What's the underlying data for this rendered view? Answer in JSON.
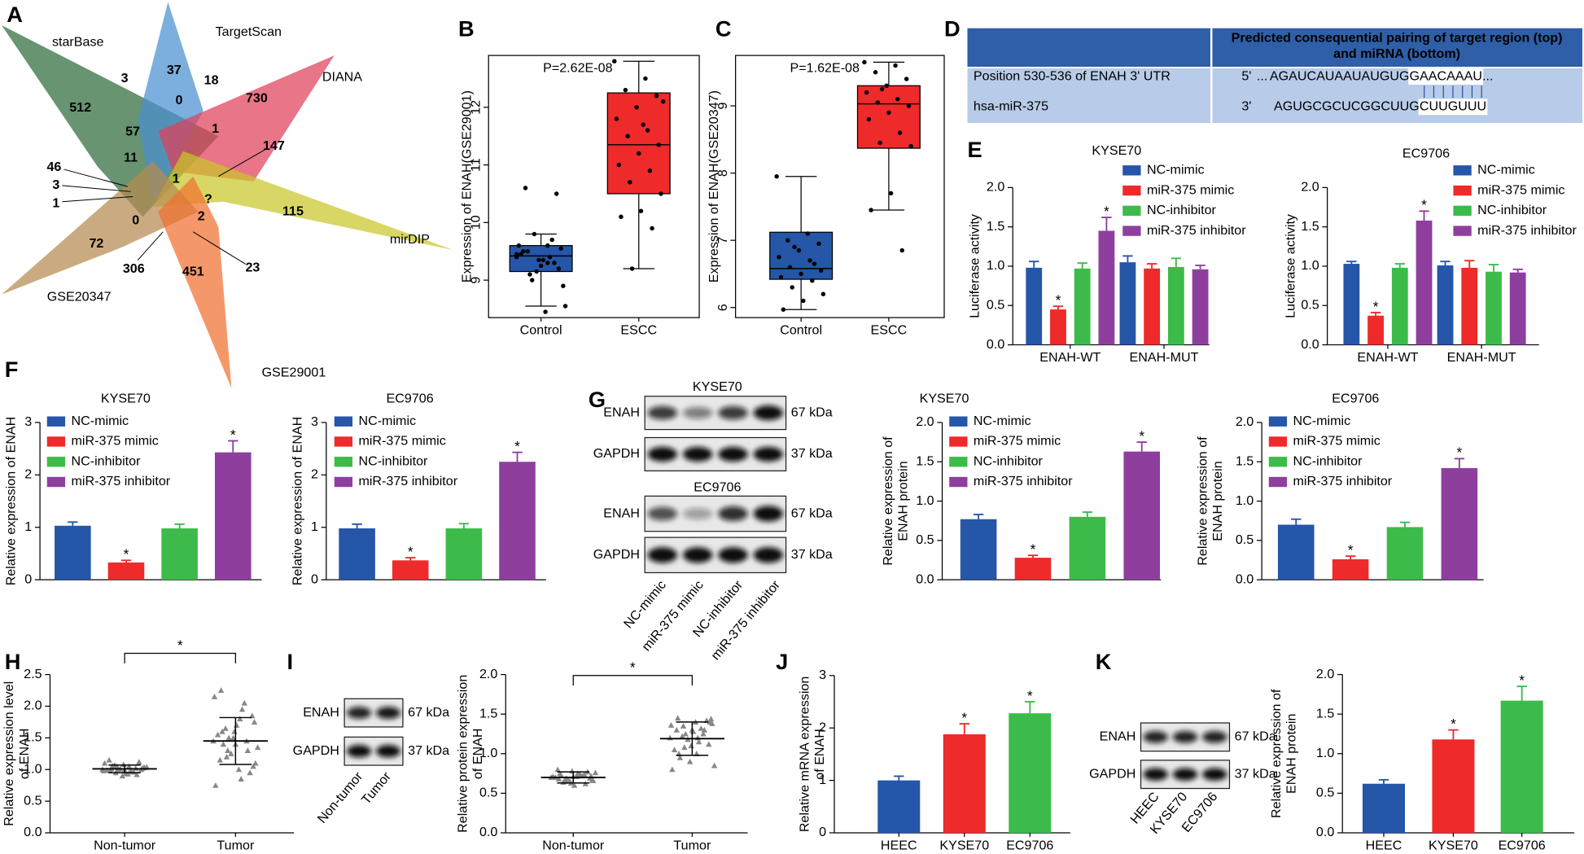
{
  "panel_labels": [
    "A",
    "B",
    "C",
    "D",
    "E",
    "F",
    "G",
    "H",
    "I",
    "J",
    "K"
  ],
  "venn": {
    "sets": [
      {
        "name": "starBase",
        "color": "#2e6b3a"
      },
      {
        "name": "TargetScan",
        "color": "#4a90d0"
      },
      {
        "name": "DIANA",
        "color": "#e0405a"
      },
      {
        "name": "mirDIP",
        "color": "#c9c62a"
      },
      {
        "name": "GSE20347",
        "color": "#b58a50"
      },
      {
        "name": "GSE29001",
        "color": "#f07030"
      }
    ],
    "regions": [
      3,
      37,
      18,
      0,
      730,
      512,
      57,
      1,
      147,
      11,
      1,
      "?",
      46,
      3,
      1,
      115,
      0,
      2,
      72,
      306,
      451,
      23
    ]
  },
  "sequence_table": {
    "header": [
      "Predicted consequential pairing of target region (top)",
      "and miRNA (bottom)"
    ],
    "rows": [
      {
        "label": "Position 530-536 of ENAH 3' UTR",
        "end": "5'",
        "seq": [
          "...",
          "AGAUCAUAAUAUGUG",
          "GAACAAAU",
          "..."
        ]
      },
      {
        "label": "hsa-miR-375",
        "end": "3'",
        "seq": [
          "AGUGCGCUCGGCUUG",
          "CUUGUUU"
        ]
      }
    ]
  },
  "blots": [
    {
      "title": "KYSE70",
      "rows": [
        {
          "name": "ENAH",
          "size": "67 kDa"
        },
        {
          "name": "GAPDH",
          "size": "37 kDa"
        }
      ]
    },
    {
      "title": "EC9706",
      "rows": [
        {
          "name": "ENAH",
          "size": "67 kDa"
        },
        {
          "name": "GAPDH",
          "size": "37 kDa"
        }
      ],
      "lanes": [
        "NC-mimic",
        "miR-375 mimic",
        "NC-inhibitor",
        "miR-375 inhibitor"
      ]
    },
    {
      "rows": [
        {
          "name": "ENAH",
          "size": "67 kDa"
        },
        {
          "name": "GAPDH",
          "size": "37 kDa"
        }
      ],
      "lanes": [
        "Non-tumor",
        "Tumor"
      ]
    },
    {
      "rows": [
        {
          "name": "ENAH",
          "size": "67 kDa"
        },
        {
          "name": "GAPDH",
          "size": "37 kDa"
        }
      ],
      "lanes": [
        "HEEC",
        "KYSE70",
        "EC9706"
      ]
    }
  ],
  "chart_data": [
    {
      "type": "box",
      "annotation": "P=2.62E-08",
      "ylabel": "Expression of ENAH(GSE29001)",
      "categories": [
        "Control",
        "ESCC"
      ],
      "colors": [
        "#2556a8",
        "#ee2a2a"
      ],
      "ylim": [
        8.35,
        12.9
      ],
      "yticks": [
        9,
        10,
        11,
        12
      ],
      "boxes": [
        {
          "whislo": 8.55,
          "q1": 9.15,
          "med": 9.42,
          "q3": 9.6,
          "whishi": 9.8,
          "points": [
            9.45,
            9.3,
            9.5,
            9.2,
            9.35,
            9.6,
            9.4,
            9.1,
            9.55,
            9.25,
            9.45,
            9.7,
            9.0,
            8.9,
            9.35,
            9.5,
            9.3,
            9.8,
            8.55,
            8.45,
            10.6,
            10.5,
            9.15,
            9.4,
            9.6
          ]
        },
        {
          "whislo": 9.2,
          "q1": 10.5,
          "med": 11.35,
          "q3": 12.25,
          "whishi": 12.8,
          "points": [
            12.8,
            12.5,
            12.3,
            12.2,
            12.0,
            11.8,
            11.6,
            11.5,
            11.35,
            11.2,
            11.0,
            10.9,
            10.7,
            10.5,
            10.2,
            10.1,
            9.9,
            9.2,
            12.1,
            11.7
          ]
        }
      ]
    },
    {
      "type": "box",
      "annotation": "P=1.62E-08",
      "ylabel": "Expression of ENAH(GSE20347)",
      "categories": [
        "Control",
        "ESCC"
      ],
      "colors": [
        "#2556a8",
        "#ee2a2a"
      ],
      "ylim": [
        5.85,
        9.75
      ],
      "yticks": [
        6,
        7,
        8,
        9
      ],
      "boxes": [
        {
          "whislo": 5.97,
          "q1": 6.42,
          "med": 6.58,
          "q3": 7.12,
          "whishi": 7.95,
          "points": [
            7.95,
            7.1,
            7.0,
            6.95,
            6.85,
            6.75,
            6.7,
            6.6,
            6.55,
            6.5,
            6.45,
            6.4,
            6.3,
            6.2,
            6.1,
            5.97,
            6.65,
            6.9
          ]
        },
        {
          "whislo": 7.45,
          "q1": 8.37,
          "med": 9.03,
          "q3": 9.3,
          "whishi": 9.65,
          "points": [
            9.65,
            9.6,
            9.5,
            9.4,
            9.3,
            9.2,
            9.1,
            9.05,
            9.0,
            8.9,
            8.8,
            8.6,
            8.45,
            8.4,
            7.7,
            7.45,
            6.85,
            9.25
          ]
        }
      ]
    },
    {
      "type": "bar",
      "title": "KYSE70",
      "ylabel": "Luciferase activity",
      "categories": [
        "ENAH-WT",
        "ENAH-MUT"
      ],
      "legend": "upper left",
      "ylim": [
        0,
        2
      ],
      "yticks": [
        {
          "value": 0,
          "label": "0.0"
        },
        0.5,
        {
          "value": 1,
          "label": "1.0"
        },
        1.5,
        {
          "value": 2,
          "label": "2.0"
        }
      ],
      "series": [
        {
          "name": "NC-mimic",
          "color": "#2556a8",
          "values": [
            0.98,
            1.05
          ],
          "errors": [
            0.08,
            0.08
          ],
          "sig": [
            null,
            null
          ]
        },
        {
          "name": "miR-375 mimic",
          "color": "#ee2a2a",
          "values": [
            0.45,
            0.97
          ],
          "errors": [
            0.04,
            0.06
          ],
          "sig": [
            "*",
            null
          ]
        },
        {
          "name": "NC-inhibitor",
          "color": "#3dbb4a",
          "values": [
            0.97,
            0.99
          ],
          "errors": [
            0.07,
            0.11
          ],
          "sig": [
            null,
            null
          ]
        },
        {
          "name": "miR-375 inhibitor",
          "color": "#8e3f9e",
          "values": [
            1.45,
            0.96
          ],
          "errors": [
            0.17,
            0.05
          ],
          "sig": [
            "*",
            null
          ]
        }
      ]
    },
    {
      "type": "bar",
      "title": "EC9706",
      "ylabel": "Luciferase activity",
      "categories": [
        "ENAH-WT",
        "ENAH-MUT"
      ],
      "legend": "upper left",
      "ylim": [
        0,
        2
      ],
      "yticks": [
        {
          "value": 0,
          "label": "0.0"
        },
        0.5,
        {
          "value": 1,
          "label": "1.0"
        },
        1.5,
        {
          "value": 2,
          "label": "2.0"
        }
      ],
      "series": [
        {
          "name": "NC-mimic",
          "color": "#2556a8",
          "values": [
            1.03,
            1.01
          ],
          "errors": [
            0.03,
            0.05
          ],
          "sig": [
            null,
            null
          ]
        },
        {
          "name": "miR-375 mimic",
          "color": "#ee2a2a",
          "values": [
            0.37,
            0.98
          ],
          "errors": [
            0.04,
            0.09
          ],
          "sig": [
            "*",
            null
          ]
        },
        {
          "name": "NC-inhibitor",
          "color": "#3dbb4a",
          "values": [
            0.98,
            0.93
          ],
          "errors": [
            0.05,
            0.09
          ],
          "sig": [
            null,
            null
          ]
        },
        {
          "name": "miR-375 inhibitor",
          "color": "#8e3f9e",
          "values": [
            1.58,
            0.92
          ],
          "errors": [
            0.12,
            0.04
          ],
          "sig": [
            "*",
            null
          ]
        }
      ]
    },
    {
      "type": "bar",
      "title": "KYSE70",
      "ylabel": "Relative expression of ENAH",
      "categories": [
        null
      ],
      "legend": "upper left",
      "ylim": [
        0,
        3
      ],
      "yticks": [
        0,
        1,
        2,
        3
      ],
      "series": [
        {
          "name": "NC-mimic",
          "color": "#2556a8",
          "values": [
            1.03
          ],
          "errors": [
            0.07
          ],
          "sig": [
            null
          ]
        },
        {
          "name": "miR-375 mimic",
          "color": "#ee2a2a",
          "values": [
            0.33
          ],
          "errors": [
            0.04
          ],
          "sig": [
            "*"
          ]
        },
        {
          "name": "NC-inhibitor",
          "color": "#3dbb4a",
          "values": [
            0.98
          ],
          "errors": [
            0.08
          ],
          "sig": [
            null
          ]
        },
        {
          "name": "miR-375 inhibitor",
          "color": "#8e3f9e",
          "values": [
            2.43
          ],
          "errors": [
            0.22
          ],
          "sig": [
            "*"
          ]
        }
      ]
    },
    {
      "type": "bar",
      "title": "EC9706",
      "ylabel": "Relative expression of ENAH",
      "categories": [
        null
      ],
      "legend": "upper left",
      "ylim": [
        0,
        3
      ],
      "yticks": [
        0,
        1,
        2,
        3
      ],
      "series": [
        {
          "name": "NC-mimic",
          "color": "#2556a8",
          "values": [
            0.98
          ],
          "errors": [
            0.08
          ],
          "sig": [
            null
          ]
        },
        {
          "name": "miR-375 mimic",
          "color": "#ee2a2a",
          "values": [
            0.37
          ],
          "errors": [
            0.05
          ],
          "sig": [
            "*"
          ]
        },
        {
          "name": "NC-inhibitor",
          "color": "#3dbb4a",
          "values": [
            0.98
          ],
          "errors": [
            0.09
          ],
          "sig": [
            null
          ]
        },
        {
          "name": "miR-375 inhibitor",
          "color": "#8e3f9e",
          "values": [
            2.25
          ],
          "errors": [
            0.18
          ],
          "sig": [
            "*"
          ]
        }
      ]
    },
    {
      "type": "bar",
      "title": "KYSE70",
      "ylabel": [
        "Relative expression of",
        "ENAH protein"
      ],
      "categories": [
        null
      ],
      "legend": "upper left",
      "ylim": [
        0,
        2
      ],
      "yticks": [
        {
          "value": 0,
          "label": "0.0"
        },
        0.5,
        {
          "value": 1,
          "label": "1.0"
        },
        1.5,
        {
          "value": 2,
          "label": "2.0"
        }
      ],
      "series": [
        {
          "name": "NC-mimic",
          "color": "#2556a8",
          "values": [
            0.77
          ],
          "errors": [
            0.06
          ],
          "sig": [
            null
          ]
        },
        {
          "name": "miR-375 mimic",
          "color": "#ee2a2a",
          "values": [
            0.28
          ],
          "errors": [
            0.03
          ],
          "sig": [
            "*"
          ]
        },
        {
          "name": "NC-inhibitor",
          "color": "#3dbb4a",
          "values": [
            0.8
          ],
          "errors": [
            0.06
          ],
          "sig": [
            null
          ]
        },
        {
          "name": "miR-375 inhibitor",
          "color": "#8e3f9e",
          "values": [
            1.63
          ],
          "errors": [
            0.12
          ],
          "sig": [
            "*"
          ]
        }
      ]
    },
    {
      "type": "bar",
      "title": "EC9706",
      "ylabel": [
        "Relative expression of",
        "ENAH protein"
      ],
      "categories": [
        null
      ],
      "legend": "upper left",
      "ylim": [
        0,
        2
      ],
      "yticks": [
        {
          "value": 0,
          "label": "0.0"
        },
        0.5,
        {
          "value": 1,
          "label": "1.0"
        },
        1.5,
        {
          "value": 2,
          "label": "2.0"
        }
      ],
      "series": [
        {
          "name": "NC-mimic",
          "color": "#2556a8",
          "values": [
            0.7
          ],
          "errors": [
            0.07
          ],
          "sig": [
            null
          ]
        },
        {
          "name": "miR-375 mimic",
          "color": "#ee2a2a",
          "values": [
            0.26
          ],
          "errors": [
            0.04
          ],
          "sig": [
            "*"
          ]
        },
        {
          "name": "NC-inhibitor",
          "color": "#3dbb4a",
          "values": [
            0.67
          ],
          "errors": [
            0.06
          ],
          "sig": [
            null
          ]
        },
        {
          "name": "miR-375 inhibitor",
          "color": "#8e3f9e",
          "values": [
            1.42
          ],
          "errors": [
            0.12
          ],
          "sig": [
            "*"
          ]
        }
      ]
    },
    {
      "type": "strip",
      "ylabel": [
        "Relative expression level",
        "of ENAH"
      ],
      "categories": [
        "Non-tumor",
        "Tumor"
      ],
      "ylim": [
        0,
        2.5
      ],
      "yticks": [
        {
          "value": 0,
          "label": "0.0"
        },
        0.5,
        {
          "value": 1,
          "label": "1.0"
        },
        1.5,
        {
          "value": 2,
          "label": "2.0"
        },
        2.5
      ],
      "sig": "*",
      "mean": [
        1.01,
        1.45
      ],
      "sd": [
        0.06,
        0.37
      ],
      "points": [
        [
          1.0,
          0.95,
          1.05,
          1.02,
          0.98,
          1.08,
          0.92,
          1.1,
          1.0,
          0.97,
          1.03,
          1.06,
          0.94,
          1.12,
          0.99,
          1.01,
          0.96,
          1.04,
          1.07,
          0.93,
          1.0,
          1.15,
          0.9,
          1.02,
          0.98,
          1.05,
          0.97,
          1.03,
          1.01,
          0.99
        ],
        [
          1.45,
          1.2,
          1.8,
          1.05,
          2.25,
          1.6,
          1.3,
          0.75,
          1.5,
          1.95,
          1.1,
          1.4,
          1.7,
          0.95,
          1.55,
          1.25,
          2.05,
          1.35,
          1.65,
          1.0,
          1.85,
          1.15,
          1.5,
          1.45,
          2.15,
          1.3,
          0.85,
          1.75,
          1.6,
          1.4
        ]
      ]
    },
    {
      "type": "strip",
      "ylabel": [
        "Relative protein expression",
        "of ENAH"
      ],
      "categories": [
        "Non-tumor",
        "Tumor"
      ],
      "ylim": [
        0,
        2
      ],
      "yticks": [
        {
          "value": 0,
          "label": "0.0"
        },
        0.5,
        {
          "value": 1,
          "label": "1.0"
        },
        1.5,
        {
          "value": 2,
          "label": "2.0"
        }
      ],
      "sig": "*",
      "mean": [
        0.7,
        1.19
      ],
      "sd": [
        0.07,
        0.21
      ],
      "points": [
        [
          0.7,
          0.65,
          0.75,
          0.72,
          0.68,
          0.78,
          0.62,
          0.71,
          0.69,
          0.74,
          0.66,
          0.73,
          0.6,
          0.77,
          0.7,
          0.67,
          0.72,
          0.76,
          0.64,
          0.71,
          0.69,
          0.8,
          0.63,
          0.74,
          0.7,
          0.68,
          0.73,
          0.66,
          0.75,
          0.71
        ],
        [
          1.2,
          1.35,
          1.0,
          1.4,
          1.45,
          1.1,
          1.3,
          0.8,
          1.25,
          1.15,
          1.38,
          0.95,
          1.28,
          1.42,
          1.05,
          1.18,
          1.32,
          0.85,
          1.22,
          1.4,
          1.12,
          1.3,
          0.9,
          1.25,
          1.36,
          1.08,
          1.2,
          1.44,
          1.0,
          1.3
        ]
      ]
    },
    {
      "type": "bar",
      "ylabel": [
        "Relative mRNA expression",
        "of ENAH"
      ],
      "categories": [
        "HEEC",
        "KYSE70",
        "EC9706"
      ],
      "colors": [
        "#2556a8",
        "#ee2a2a",
        "#3dbb4a"
      ],
      "values": [
        1.0,
        1.88,
        2.28
      ],
      "errors": [
        0.08,
        0.2,
        0.22
      ],
      "sig": [
        null,
        "*",
        "*"
      ],
      "ylim": [
        0,
        3
      ],
      "yticks": [
        0,
        1,
        2,
        3
      ]
    },
    {
      "type": "bar",
      "ylabel": [
        "Relative expression of",
        "ENAH protein"
      ],
      "categories": [
        "HEEC",
        "KYSE70",
        "EC9706"
      ],
      "colors": [
        "#2556a8",
        "#ee2a2a",
        "#3dbb4a"
      ],
      "values": [
        0.62,
        1.18,
        1.67
      ],
      "errors": [
        0.05,
        0.12,
        0.18
      ],
      "sig": [
        null,
        "*",
        "*"
      ],
      "ylim": [
        0,
        2
      ],
      "yticks": [
        {
          "value": 0,
          "label": "0.0"
        },
        0.5,
        {
          "value": 1,
          "label": "1.0"
        },
        1.5,
        {
          "value": 2,
          "label": "2.0"
        }
      ]
    }
  ]
}
